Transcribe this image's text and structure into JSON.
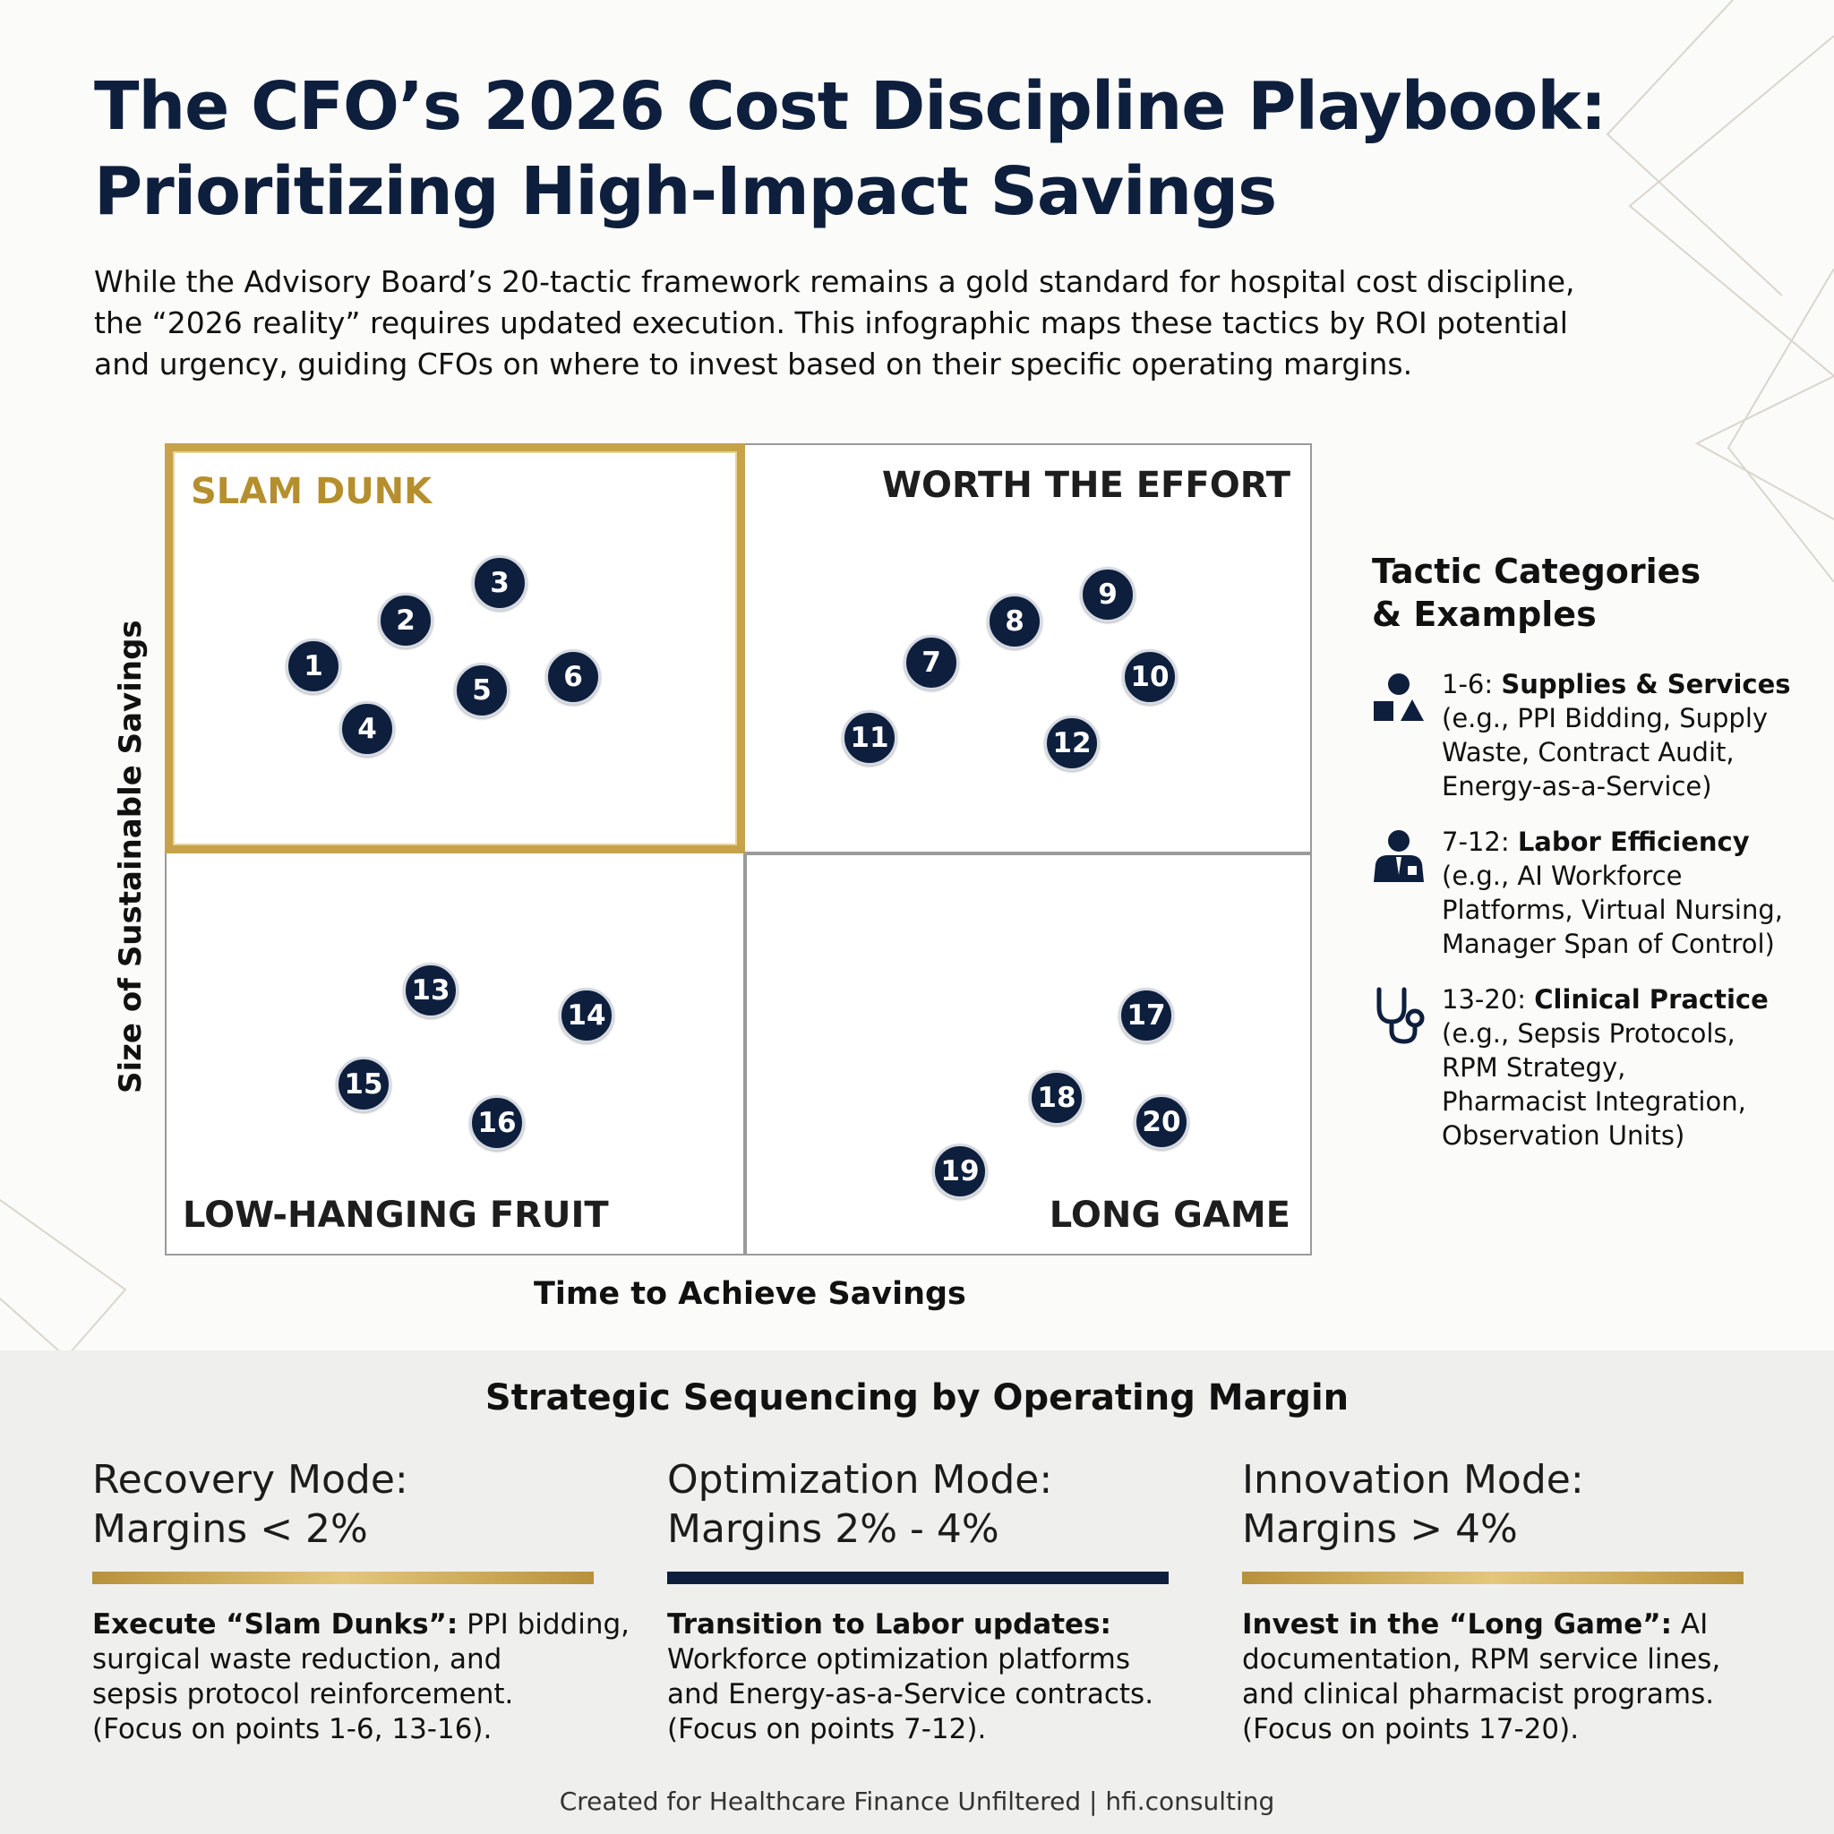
{
  "title": {
    "line1": "The CFO’s 2026 Cost Discipline Playbook:",
    "line2": "Prioritizing High-Impact Savings"
  },
  "intro": {
    "line1": "While the Advisory Board’s 20-tactic framework remains a gold standard for hospital cost discipline,",
    "line2": "the “2026 reality” requires updated execution. This infographic maps these tactics by ROI potential",
    "line3": "and urgency, guiding CFOs on where to invest based on their specific operating margins."
  },
  "matrix": {
    "quadrants": {
      "top_left": "SLAM DUNK",
      "top_right": "WORTH THE EFFORT",
      "bottom_left": "LOW-HANGING FRUIT",
      "bottom_right": "LONG GAME"
    },
    "y_axis_label": "Size of Sustainable Savings",
    "x_axis_label": "Time to Achieve Savings",
    "points": [
      "1",
      "2",
      "3",
      "4",
      "5",
      "6",
      "7",
      "8",
      "9",
      "10",
      "11",
      "12",
      "13",
      "14",
      "15",
      "16",
      "17",
      "18",
      "19",
      "20"
    ]
  },
  "legend": {
    "title_line1": "Tactic Categories",
    "title_line2": "& Examples",
    "items": [
      {
        "icon": "shapes-icon",
        "range": "1-6: ",
        "name": "Supplies & Services",
        "lines": [
          "(e.g., PPI Bidding, Supply",
          "Waste, Contract Audit,",
          "Energy-as-a-Service)"
        ]
      },
      {
        "icon": "worker-icon",
        "range": "7-12: ",
        "name": "Labor Efficiency",
        "lines": [
          "(e.g., AI Workforce",
          "Platforms, Virtual Nursing,",
          "Manager Span of Control)"
        ]
      },
      {
        "icon": "stethoscope-icon",
        "range": "13-20: ",
        "name": "Clinical Practice",
        "lines": [
          "(e.g., Sepsis Protocols,",
          "RPM Strategy,",
          "Pharmacist Integration,",
          "Observation Units)"
        ]
      }
    ]
  },
  "sequencing": {
    "title": "Strategic Sequencing by Operating Margin",
    "columns": [
      {
        "head1": "Recovery Mode:",
        "head2": "Margins < 2%",
        "bar_color": "#c6a248",
        "bold": "Execute “Slam Dunks”:",
        "rest_first": " PPI bidding,",
        "lines": [
          "surgical waste reduction, and",
          "sepsis protocol reinforcement.",
          "(Focus on points 1-6, 13-16)."
        ]
      },
      {
        "head1": "Optimization Mode:",
        "head2": "Margins 2% - 4%",
        "bar_color": "#0e1f3d",
        "bold": "Transition to Labor updates:",
        "rest_first": "",
        "lines": [
          "Workforce optimization platforms",
          "and Energy-as-a-Service contracts.",
          "(Focus on points 7-12)."
        ]
      },
      {
        "head1": "Innovation Mode:",
        "head2": "Margins > 4%",
        "bar_color": "#c6a248",
        "bold": "Invest in the “Long Game”:",
        "rest_first": " AI",
        "lines": [
          "documentation, RPM service lines,",
          "and clinical pharmacist programs.",
          "(Focus on points 17-20)."
        ]
      }
    ]
  },
  "footer": "Created for Healthcare Finance Unfiltered | hfi.consulting",
  "colors": {
    "navy": "#0e1f3d",
    "gold": "#c6a248"
  }
}
